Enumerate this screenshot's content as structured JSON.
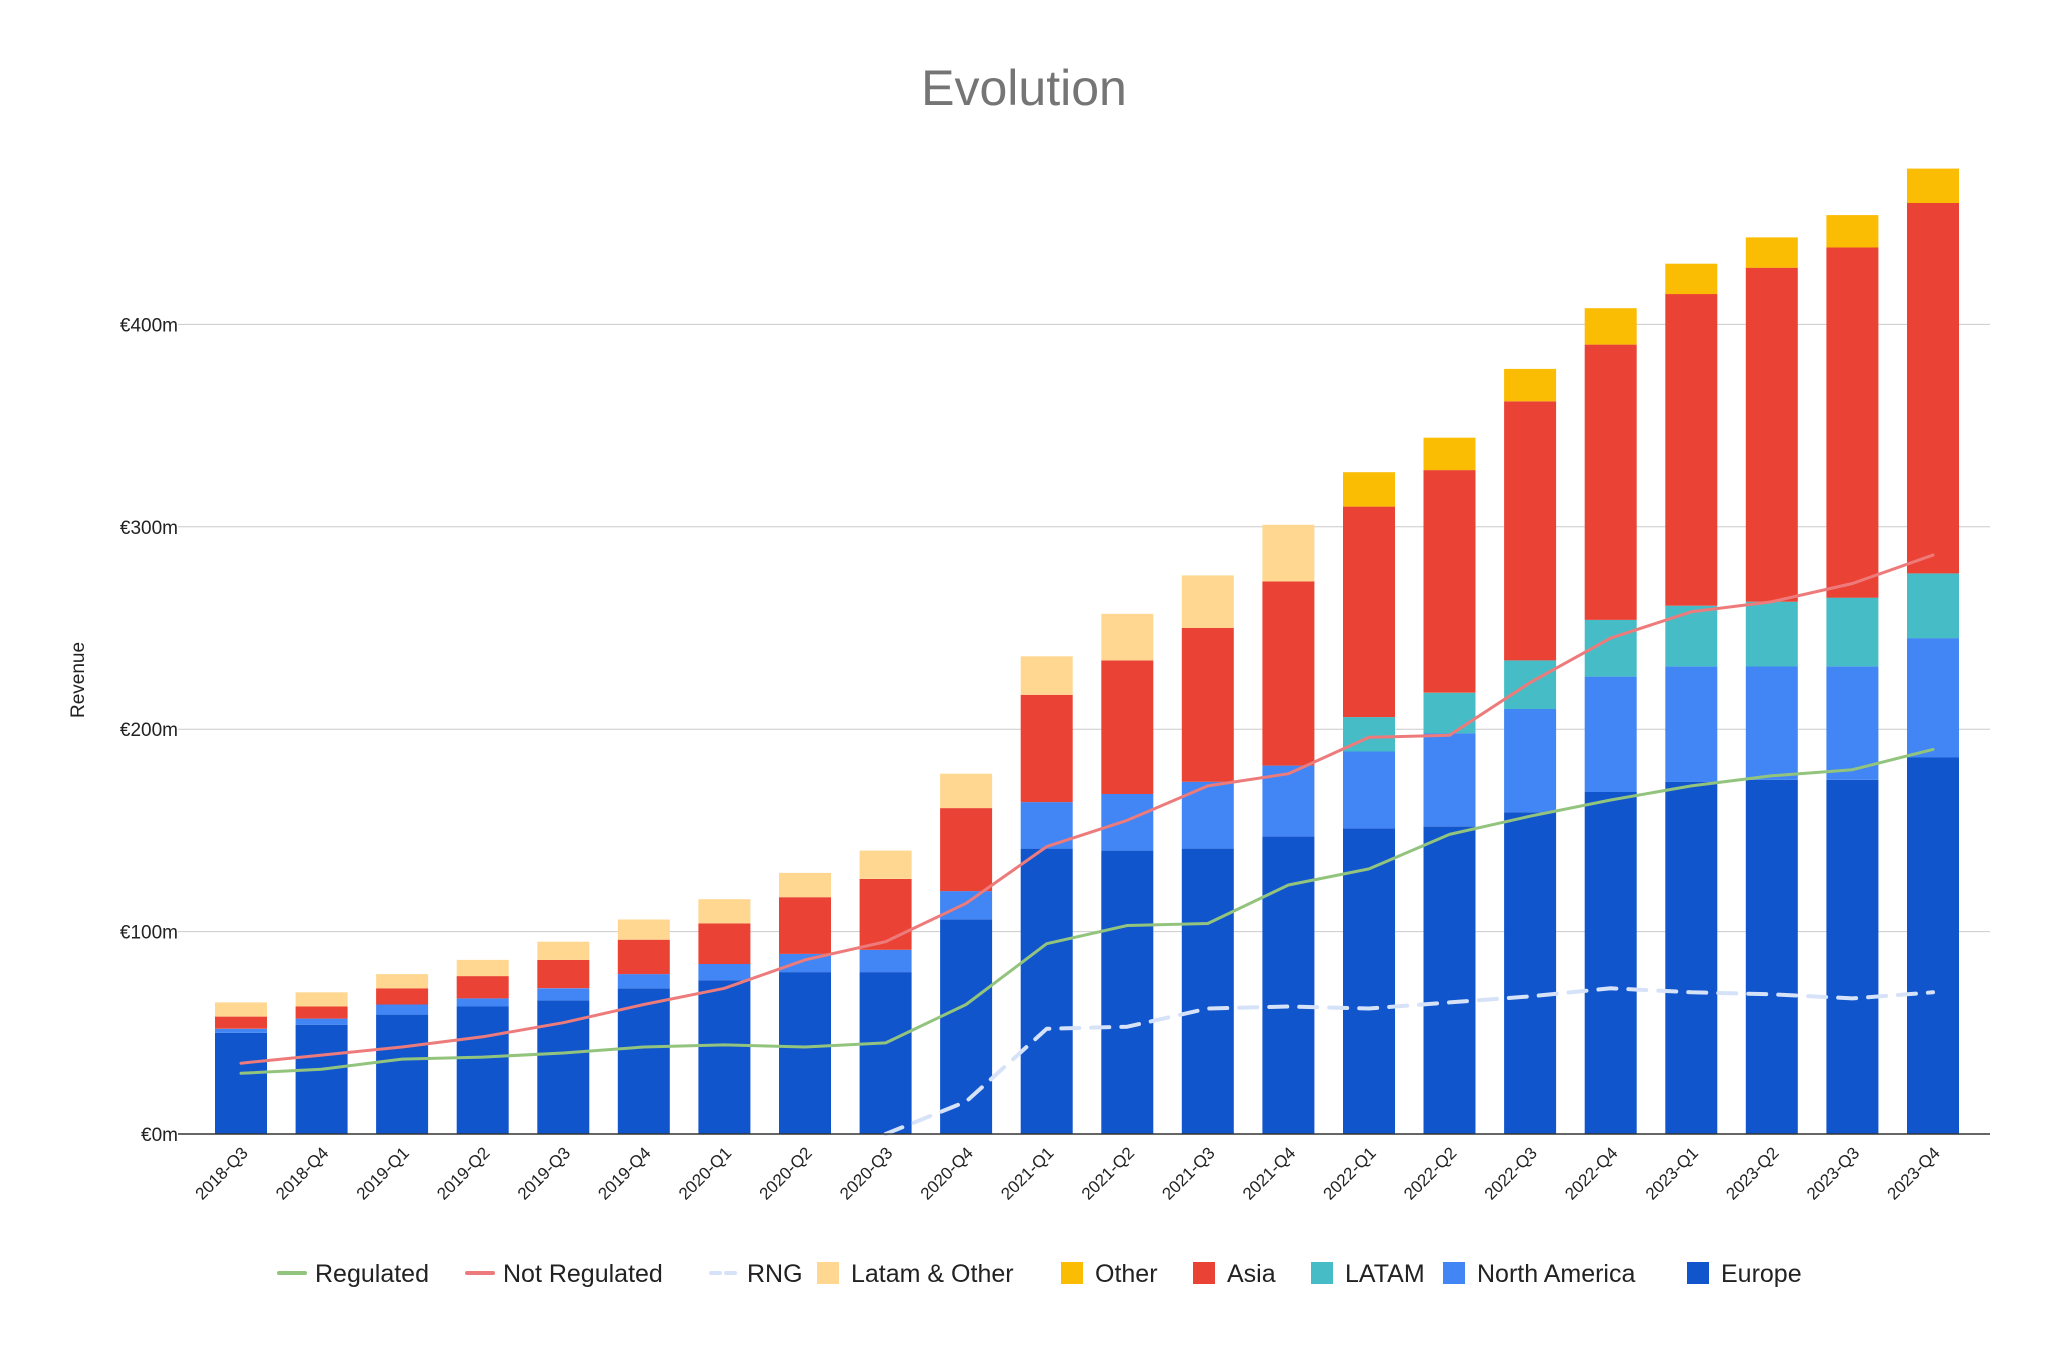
{
  "chart_data": {
    "type": "bar",
    "stacked": true,
    "title": "Evolution",
    "ylabel": "Revenue",
    "xlabel": "",
    "ylim": [
      0,
      470
    ],
    "y_ticks": [
      0,
      100,
      200,
      300,
      400
    ],
    "y_tick_labels": [
      "€0m",
      "€100m",
      "€200m",
      "€300m",
      "€400m"
    ],
    "grid": true,
    "legend_position": "bottom",
    "categories": [
      "2018-Q3",
      "2018-Q4",
      "2019-Q1",
      "2019-Q2",
      "2019-Q3",
      "2019-Q4",
      "2020-Q1",
      "2020-Q2",
      "2020-Q3",
      "2020-Q4",
      "2021-Q1",
      "2021-Q2",
      "2021-Q3",
      "2021-Q4",
      "2022-Q1",
      "2022-Q2",
      "2022-Q3",
      "2022-Q4",
      "2023-Q1",
      "2023-Q2",
      "2023-Q3",
      "2023-Q4"
    ],
    "series": [
      {
        "name": "Europe",
        "color": "#1155cc",
        "values": [
          50,
          54,
          59,
          63,
          66,
          72,
          76,
          80,
          80,
          106,
          141,
          140,
          141,
          147,
          151,
          152,
          159,
          169,
          174,
          175,
          175,
          186
        ]
      },
      {
        "name": "North America",
        "color": "#4285f4",
        "values": [
          2,
          3,
          5,
          4,
          6,
          7,
          8,
          9,
          11,
          14,
          23,
          28,
          33,
          35,
          38,
          46,
          51,
          57,
          57,
          56,
          56,
          59
        ]
      },
      {
        "name": "LATAM",
        "color": "#46bdc6",
        "values": [
          null,
          null,
          null,
          null,
          null,
          null,
          null,
          null,
          null,
          null,
          null,
          null,
          null,
          null,
          17,
          20,
          24,
          28,
          30,
          32,
          34,
          32
        ]
      },
      {
        "name": "Asia",
        "color": "#ea4335",
        "values": [
          6,
          6,
          8,
          11,
          14,
          17,
          20,
          28,
          35,
          41,
          53,
          66,
          76,
          91,
          104,
          110,
          128,
          136,
          154,
          165,
          173,
          183
        ]
      },
      {
        "name": "Other",
        "color": "#fbbc04",
        "values": [
          null,
          null,
          null,
          null,
          null,
          null,
          null,
          null,
          null,
          null,
          null,
          null,
          null,
          null,
          17,
          16,
          16,
          18,
          15,
          15,
          16,
          17
        ]
      },
      {
        "name": "Latam & Other",
        "color": "#ffd791",
        "values": [
          7,
          7,
          7,
          8,
          9,
          10,
          12,
          12,
          14,
          17,
          19,
          23,
          26,
          28,
          null,
          null,
          null,
          null,
          null,
          null,
          null,
          null
        ]
      }
    ],
    "lines": [
      {
        "name": "Regulated",
        "color": "#93c47d",
        "dashed": false,
        "values": [
          30,
          32,
          37,
          38,
          40,
          43,
          44,
          43,
          45,
          64,
          94,
          103,
          104,
          123,
          131,
          148,
          157,
          165,
          172,
          177,
          180,
          190
        ]
      },
      {
        "name": "Not Regulated",
        "color": "#ee7b7b",
        "dashed": false,
        "values": [
          35,
          39,
          43,
          48,
          55,
          64,
          72,
          86,
          95,
          114,
          142,
          155,
          172,
          178,
          196,
          197,
          223,
          245,
          258,
          263,
          272,
          286
        ]
      },
      {
        "name": "RNG",
        "color": "#d6e2f7",
        "dashed": true,
        "values": [
          null,
          null,
          null,
          null,
          null,
          null,
          null,
          null,
          0,
          16,
          52,
          53,
          62,
          63,
          62,
          65,
          68,
          72,
          70,
          69,
          67,
          70
        ]
      }
    ],
    "legend": [
      "Regulated",
      "Not Regulated",
      "RNG",
      "Latam & Other",
      "Other",
      "Asia",
      "LATAM",
      "North America",
      "Europe"
    ]
  }
}
